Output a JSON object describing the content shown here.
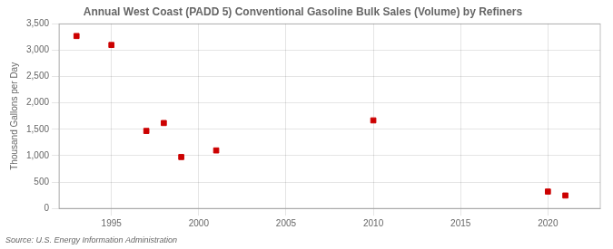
{
  "chart_data": {
    "type": "scatter",
    "title": "Annual West Coast (PADD 5) Conventional Gasoline Bulk Sales (Volume) by Refiners",
    "ylabel": "Thousand Gallons per Day",
    "annotations": [
      "Source: U.S. Energy Information Administration"
    ],
    "x": [
      1993,
      1995,
      1997,
      1998,
      1999,
      2001,
      2010,
      2020,
      2021
    ],
    "values": [
      3270,
      3100,
      1470,
      1620,
      975,
      1100,
      1670,
      320,
      245
    ],
    "color": "#cc0000",
    "marker": "square",
    "xlim": [
      1992,
      2023
    ],
    "xticks": [
      1995,
      2000,
      2005,
      2010,
      2015,
      2020
    ],
    "ylim": [
      0,
      3500
    ],
    "yticks": [
      0,
      500,
      {
        "value": 1000,
        "label": "1,000"
      },
      {
        "value": 1500,
        "label": "1,500"
      },
      {
        "value": 2000,
        "label": "2,000"
      },
      {
        "value": 2500,
        "label": "2,500"
      },
      {
        "value": 3000,
        "label": "3,000"
      },
      {
        "value": 3500,
        "label": "3,500"
      }
    ],
    "grid": true
  }
}
